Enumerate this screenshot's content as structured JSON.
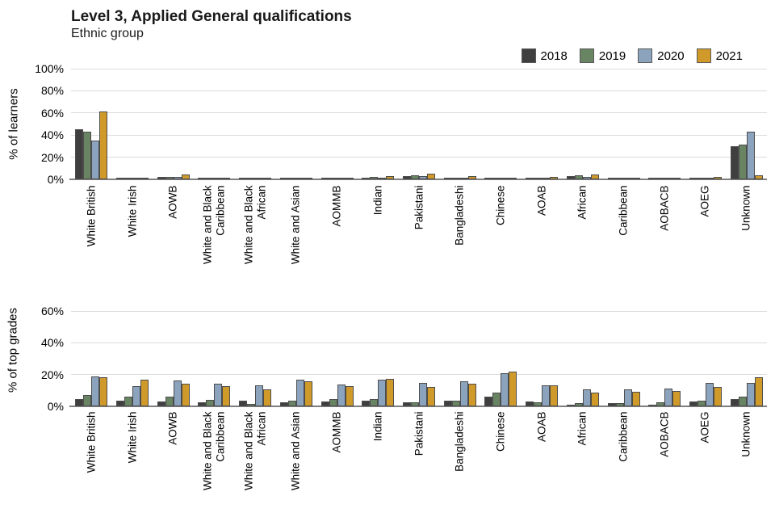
{
  "header": {
    "title": "Level 3, Applied General qualifications",
    "subtitle": "Ethnic group"
  },
  "colors": {
    "2018": "#3f3f3f",
    "2019": "#688463",
    "2020": "#8ca3bd",
    "2021": "#d09a2b",
    "bar_border": "#4d4d4d",
    "gridline": "#dcdcdc",
    "axis_line": "#7f7f7f"
  },
  "legend": {
    "entries": [
      "2018",
      "2019",
      "2020",
      "2021"
    ],
    "position": "top-right"
  },
  "chart_data": [
    {
      "type": "bar",
      "title": "Level 3, Applied General qualifications — Ethnic group",
      "ylabel": "% of learners",
      "xlabel": "",
      "ylim": [
        0,
        100
      ],
      "yticks": [
        0,
        20,
        40,
        60,
        80,
        100
      ],
      "grid": true,
      "categories": [
        "White British",
        "White Irish",
        "AOWB",
        "White and Black Caribbean",
        "White and Black African",
        "White and Asian",
        "AOMMB",
        "Indian",
        "Pakistani",
        "Bangladeshi",
        "Chinese",
        "AOAB",
        "African",
        "Caribbean",
        "AOBACB",
        "AOEG",
        "Unknown"
      ],
      "series": [
        {
          "name": "2018",
          "values": [
            45,
            0.3,
            2.4,
            0.8,
            0.4,
            0.6,
            0.6,
            1.8,
            3.1,
            1.4,
            0.2,
            1.4,
            3.1,
            0.7,
            0.3,
            1.0,
            30
          ]
        },
        {
          "name": "2019",
          "values": [
            43,
            0.3,
            2.2,
            0.8,
            0.4,
            0.6,
            0.6,
            2.1,
            3.3,
            1.4,
            0.2,
            1.2,
            3.6,
            0.7,
            0.3,
            0.9,
            31.5
          ]
        },
        {
          "name": "2020",
          "values": [
            35,
            0.2,
            2.2,
            0.8,
            0.4,
            0.5,
            0.5,
            1.8,
            2.6,
            1.2,
            0.2,
            0.7,
            2.1,
            0.6,
            0.3,
            0.7,
            43
          ]
        },
        {
          "name": "2021",
          "values": [
            61,
            0.3,
            4.5,
            1.4,
            0.8,
            1.1,
            1.5,
            2.6,
            5.2,
            2.9,
            0.3,
            2.4,
            4.5,
            1.7,
            0.9,
            1.9,
            3.5
          ]
        }
      ]
    },
    {
      "type": "bar",
      "title": "",
      "ylabel": "% of top grades",
      "xlabel": "",
      "ylim": [
        0,
        70
      ],
      "yticks": [
        0,
        20,
        40,
        60
      ],
      "grid": true,
      "categories": [
        "White British",
        "White Irish",
        "AOWB",
        "White and Black Caribbean",
        "White and Black African",
        "White and Asian",
        "AOMMB",
        "Indian",
        "Pakistani",
        "Bangladeshi",
        "Chinese",
        "AOAB",
        "African",
        "Caribbean",
        "AOBACB",
        "AOEG",
        "Unknown"
      ],
      "series": [
        {
          "name": "2018",
          "values": [
            4.8,
            3.5,
            3.2,
            2.7,
            3.7,
            2.8,
            3.2,
            3.7,
            2.8,
            3.7,
            6.2,
            3.0,
            1.0,
            2.2,
            0.8,
            3.2,
            4.8
          ]
        },
        {
          "name": "2019",
          "values": [
            7.0,
            6.3,
            5.9,
            4.2,
            1.5,
            3.7,
            4.5,
            4.8,
            2.5,
            3.7,
            8.5,
            2.5,
            1.8,
            2.0,
            2.8,
            3.8,
            6.0
          ]
        },
        {
          "name": "2020",
          "values": [
            18.7,
            12.7,
            16.2,
            14.0,
            13.2,
            16.8,
            13.7,
            16.8,
            14.5,
            15.7,
            20.7,
            13.0,
            10.5,
            10.8,
            11.0,
            14.8,
            14.5
          ]
        },
        {
          "name": "2021",
          "values": [
            18.2,
            17.0,
            14.3,
            12.5,
            10.7,
            15.7,
            12.5,
            17.3,
            12.3,
            14.0,
            21.8,
            13.0,
            8.5,
            9.0,
            9.5,
            12.0,
            18.5
          ]
        }
      ]
    }
  ]
}
